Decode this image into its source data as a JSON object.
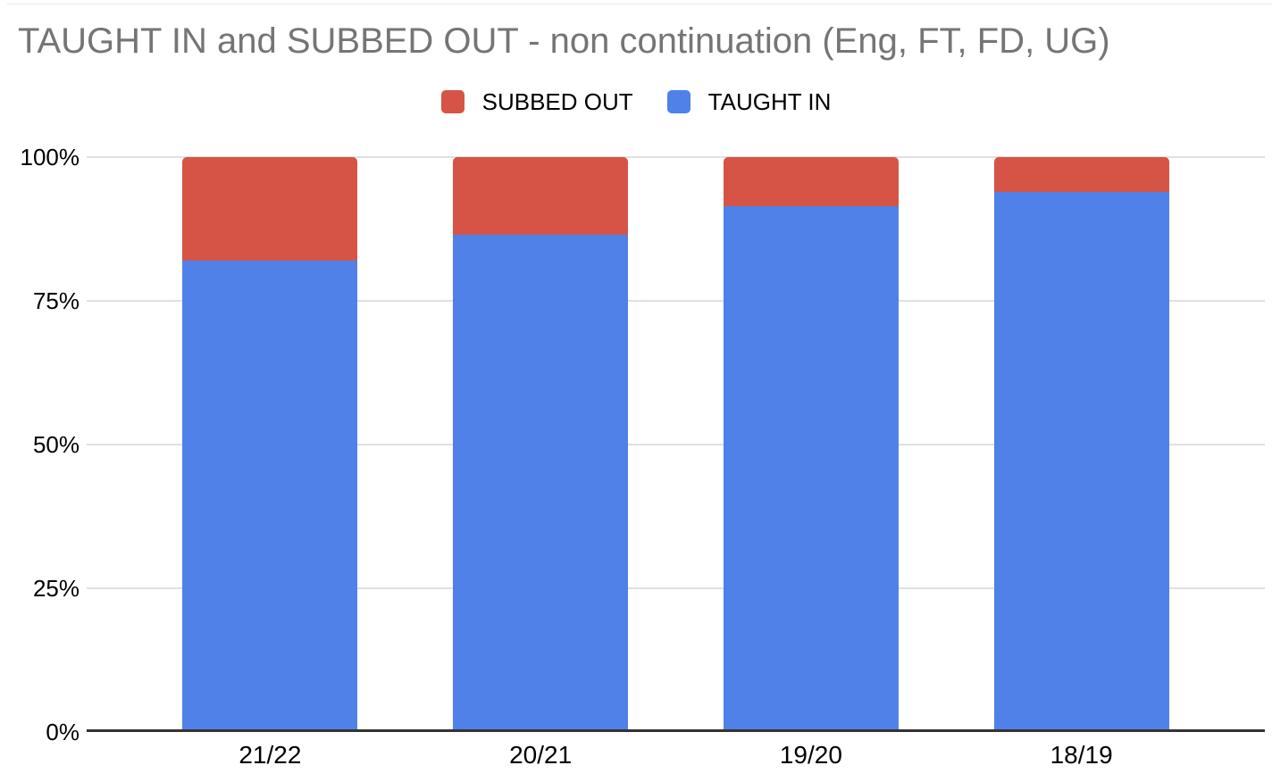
{
  "page": {
    "background": "#ffffff"
  },
  "styles": {
    "title_color": "#757575",
    "axis_text_color": "#000000",
    "legend_text_color": "#000000",
    "gridline_color": "#e0e0e0",
    "axis_line_color": "#333333"
  },
  "legend": {
    "items": [
      {
        "label": "SUBBED OUT",
        "color": "#d65446"
      },
      {
        "label": "TAUGHT IN",
        "color": "#4f81e8"
      }
    ]
  },
  "chart_data": {
    "type": "bar",
    "stacked": true,
    "orientation": "vertical",
    "title": "TAUGHT IN and SUBBED OUT - non continuation (Eng, FT, FD, UG)",
    "categories": [
      "21/22",
      "20/21",
      "19/20",
      "18/19"
    ],
    "series": [
      {
        "name": "SUBBED OUT",
        "color": "#d65446",
        "values": [
          18,
          13.5,
          8.5,
          6
        ]
      },
      {
        "name": "TAUGHT IN",
        "color": "#4f81e8",
        "values": [
          82,
          86.5,
          91.5,
          94
        ]
      }
    ],
    "value_unit": "%",
    "ylim": [
      0,
      100
    ],
    "yticks": [
      "100%",
      "75%",
      "50%",
      "25%",
      "0%"
    ],
    "xlabel": "",
    "ylabel": "",
    "grid": true,
    "legend_position": "top-center"
  }
}
